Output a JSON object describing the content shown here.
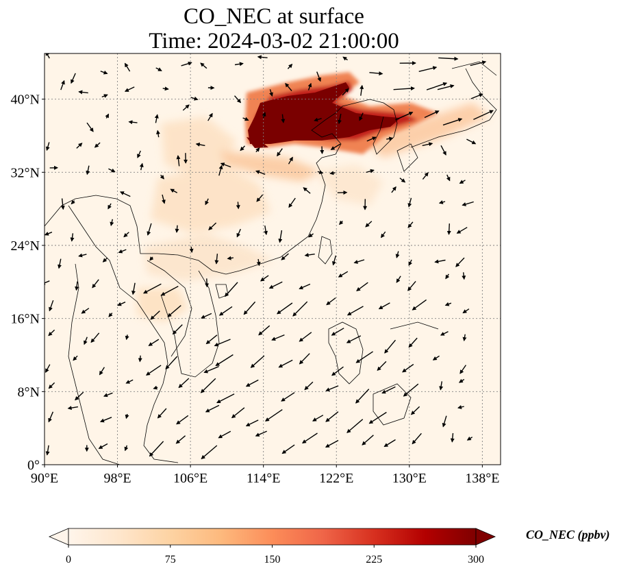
{
  "title": {
    "line1": "CO_NEC at surface",
    "line2": "Time: 2024-03-02 21:00:00"
  },
  "map": {
    "lon_range": [
      90,
      140
    ],
    "lat_range": [
      0,
      45
    ],
    "lon_ticks": [
      {
        "value": 90,
        "label": "90°E"
      },
      {
        "value": 98,
        "label": "98°E"
      },
      {
        "value": 106,
        "label": "106°E"
      },
      {
        "value": 114,
        "label": "114°E"
      },
      {
        "value": 122,
        "label": "122°E"
      },
      {
        "value": 130,
        "label": "130°E"
      },
      {
        "value": 138,
        "label": "138°E"
      }
    ],
    "lat_ticks": [
      {
        "value": 0,
        "label": "0°"
      },
      {
        "value": 8,
        "label": "8°N"
      },
      {
        "value": 16,
        "label": "16°N"
      },
      {
        "value": 24,
        "label": "24°N"
      },
      {
        "value": 32,
        "label": "32°N"
      },
      {
        "value": 40,
        "label": "40°N"
      }
    ],
    "gridlines": true,
    "background_color": "#fff5e8"
  },
  "colorbar": {
    "label": "CO_NEC (ppbv)",
    "min": 0,
    "max": 300,
    "ticks": [
      {
        "value": 0,
        "label": "0"
      },
      {
        "value": 75,
        "label": "75"
      },
      {
        "value": 150,
        "label": "150"
      },
      {
        "value": 225,
        "label": "225"
      },
      {
        "value": 300,
        "label": "300"
      }
    ],
    "colors": [
      "#fff5eb",
      "#fee0c3",
      "#fdc692",
      "#fda35c",
      "#f67e3c",
      "#e34a33",
      "#bd1e15",
      "#8a0000",
      "#700000"
    ],
    "extend": "both"
  }
}
